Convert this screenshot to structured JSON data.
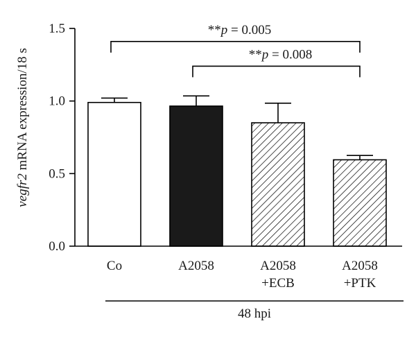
{
  "chart_data": {
    "type": "bar",
    "categories": [
      [
        "Co"
      ],
      [
        "A2058"
      ],
      [
        "A2058",
        "+ECB"
      ],
      [
        "A2058",
        "+PTK"
      ]
    ],
    "values": [
      0.99,
      0.965,
      0.85,
      0.595
    ],
    "errors": [
      0.03,
      0.07,
      0.135,
      0.03
    ],
    "fills": [
      "white",
      "black",
      "hatch",
      "hatch"
    ],
    "ylabel_italic": "vegfr2",
    "ylabel_rest": " mRNA expression/18 s",
    "ylim": [
      0.0,
      1.5
    ],
    "yticks": [
      "0.0",
      "0.5",
      "1.0",
      "1.5"
    ],
    "group_label": "48 hpi",
    "significance": [
      {
        "from": 0,
        "to": 3,
        "stars": "**",
        "p_symbol": "p",
        "p_text": " = 0.005",
        "level": 1.41
      },
      {
        "from": 1,
        "to": 3,
        "stars": "**",
        "p_symbol": "p",
        "p_text": " = 0.008",
        "level": 1.24
      }
    ],
    "grid": false,
    "colors": {
      "bar_edge": "#000000",
      "solid_bar": "#1a1a1a",
      "hatch": "#000000"
    }
  }
}
